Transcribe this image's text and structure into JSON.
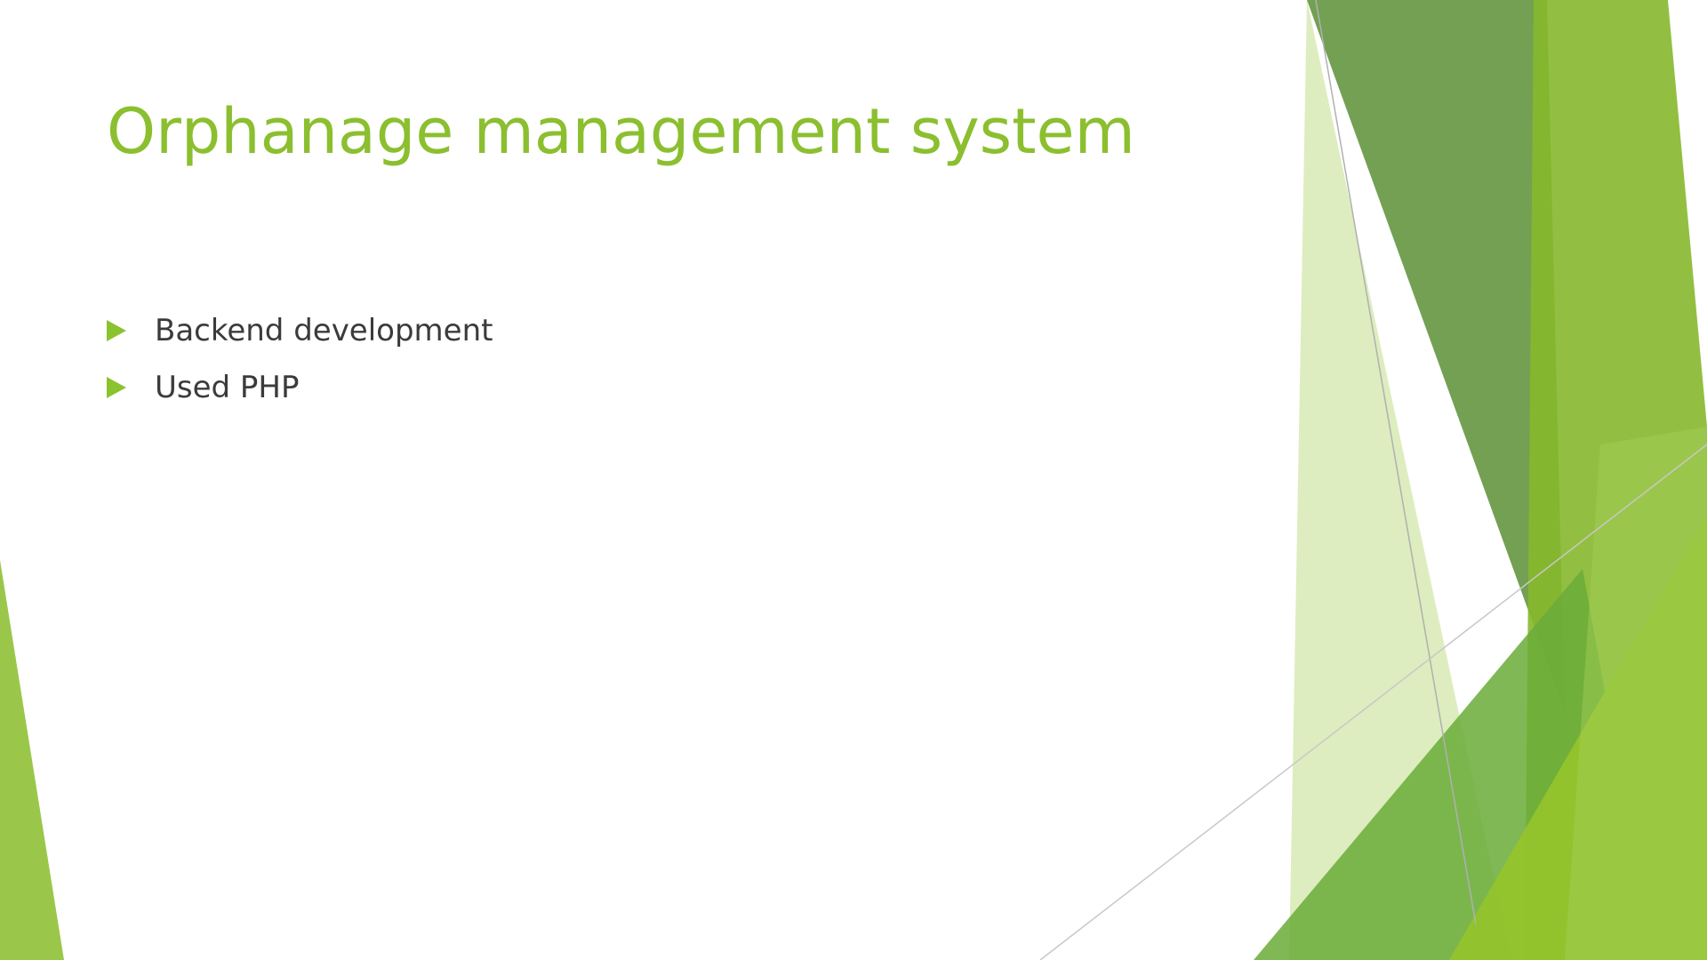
{
  "slide": {
    "title": "Orphanage management system",
    "bullets": [
      {
        "text": "Backend development"
      },
      {
        "text": "Used PHP"
      }
    ]
  },
  "colors": {
    "title": "#8bbf2f",
    "bullet_marker": "#8bc32f",
    "body_text": "#3b3b3b",
    "accent_dark_green": "#5e9230",
    "accent_lime": "#8dc030",
    "accent_pale_green": "#d9ebb8"
  },
  "icons": {
    "bullet_marker": "triangle-right-icon"
  }
}
